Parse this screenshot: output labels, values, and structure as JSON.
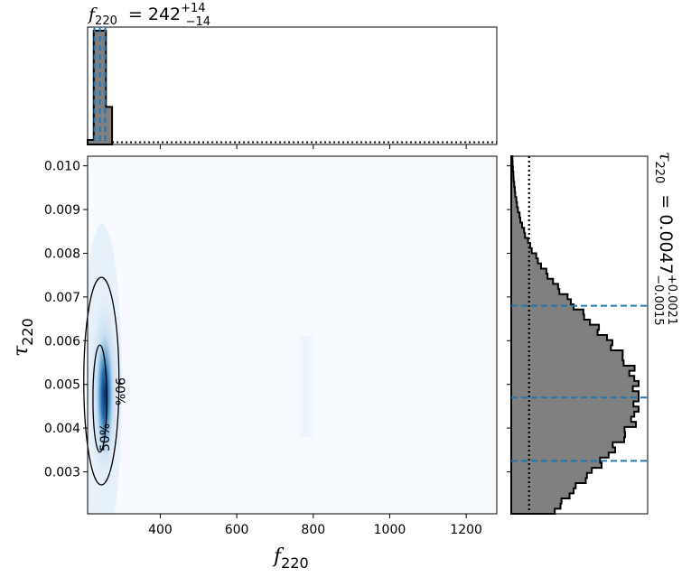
{
  "chart_data": {
    "type": "corner",
    "main": {
      "type": "heatmap",
      "xlabel": {
        "sym": "f",
        "sub": "220"
      },
      "ylabel": {
        "sym": "τ",
        "sub": "220"
      },
      "xlim": [
        210,
        1280
      ],
      "ylim": [
        0.00204,
        0.01022
      ],
      "xticks": [
        400,
        600,
        800,
        1000,
        1200
      ],
      "xtick_labels": [
        "400",
        "600",
        "800",
        "1000",
        "1200"
      ],
      "yticks": [
        0.003,
        0.004,
        0.005,
        0.006,
        0.007,
        0.008,
        0.009,
        0.01
      ],
      "ytick_labels": [
        "0.003",
        "0.004",
        "0.005",
        "0.006",
        "0.007",
        "0.008",
        "0.009",
        "0.010"
      ],
      "density_peak": {
        "x": 242,
        "y": 0.0047
      },
      "colormap": [
        "#f7fbff",
        "#c6dbef",
        "#6baed6",
        "#2171b5",
        "#08306b"
      ],
      "contours": [
        {
          "level": "50%",
          "x_center": 242,
          "x_halfwidth": 18,
          "y_min": 0.00345,
          "y_max": 0.0059
        },
        {
          "level": "90%",
          "x_center": 246,
          "x_halfwidth": 46,
          "y_min": 0.0027,
          "y_max": 0.00745
        }
      ]
    },
    "top_marginal": {
      "type": "histogram",
      "parameter": "f_220",
      "annotation": {
        "sym": "f",
        "sub": "220",
        "value": "242",
        "plus": "+14",
        "minus": "−14"
      },
      "bins_x": [
        210,
        226,
        242,
        258,
        274
      ],
      "bins_counts": [
        0.04,
        1.0,
        1.0,
        0.33
      ],
      "quantiles": [
        228,
        242,
        256
      ],
      "prior_level": 0.02
    },
    "right_marginal": {
      "type": "histogram",
      "orientation": "horizontal",
      "parameter": "tau_220",
      "annotation": {
        "sym": "τ",
        "sub": "220",
        "value": "0.0047",
        "plus": "+0.0021",
        "minus": "−0.0015"
      },
      "quantiles": [
        0.00325,
        0.0047,
        0.0068
      ],
      "prior_level": 0.14
    },
    "colors": {
      "hist_fill": "#808080",
      "hist_edge": "#000000",
      "quantile_line": "#1f77b4",
      "contour": "#000000"
    }
  }
}
